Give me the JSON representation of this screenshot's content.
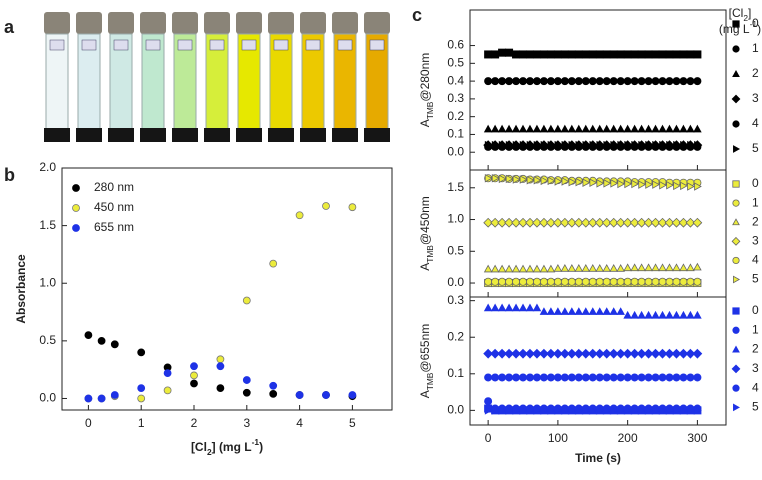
{
  "panel_labels": [
    "a",
    "b",
    "c"
  ],
  "legend_title": {
    "line1": [
      "[Cl",
      "2",
      "]"
    ],
    "line2": [
      "(mg L",
      "-1",
      ")"
    ]
  },
  "chart_data": [
    {
      "type": "scatter",
      "y_label": [
        "Absorbance"
      ],
      "x_label": [
        "[Cl",
        "2",
        "] (mg L",
        "-1",
        ")"
      ],
      "x": [
        0,
        0.25,
        0.5,
        1,
        1.5,
        2,
        2.5,
        3,
        3.5,
        4,
        4.5,
        5
      ],
      "xlim": [
        -0.5,
        5.75
      ],
      "xticks": [
        0,
        1,
        2,
        3,
        4,
        5
      ],
      "ylim": [
        -0.1,
        2.0
      ],
      "yticks": [
        {
          "value": 0,
          "label": "0.0"
        },
        {
          "value": 0.5,
          "label": "0.5"
        },
        {
          "value": 1,
          "label": "1.0"
        },
        {
          "value": 1.5,
          "label": "1.5"
        },
        {
          "value": 2,
          "label": "2.0"
        }
      ],
      "series": [
        {
          "name": "280 nm",
          "color": "#000000",
          "marker": "circle",
          "values": [
            0.55,
            0.5,
            0.47,
            0.4,
            0.27,
            0.13,
            0.09,
            0.05,
            0.04,
            0.03,
            0.03,
            0.02
          ]
        },
        {
          "name": "450 nm",
          "color": "#ecec3c",
          "marker": "circle",
          "values": [
            0,
            0,
            0.02,
            0.0,
            0.07,
            0.2,
            0.34,
            0.85,
            1.17,
            1.59,
            1.67,
            1.66
          ]
        },
        {
          "name": "655 nm",
          "color": "#1e32e6",
          "marker": "circle",
          "values": [
            0.0,
            0.0,
            0.03,
            0.09,
            0.22,
            0.28,
            0.28,
            0.16,
            0.11,
            0.03,
            0.03,
            0.03
          ]
        }
      ]
    },
    {
      "type": "scatter",
      "y_label": [
        "A",
        "TMB",
        "@280nm"
      ],
      "x": [
        0,
        10,
        20,
        30,
        40,
        50,
        60,
        70,
        80,
        90,
        100,
        110,
        120,
        130,
        140,
        150,
        160,
        170,
        180,
        190,
        200,
        210,
        220,
        230,
        240,
        250,
        260,
        270,
        280,
        290,
        300
      ],
      "xlim": [
        -26,
        341
      ],
      "xticks": [
        0,
        100,
        200,
        300
      ],
      "ylim": [
        -0.1,
        0.8
      ],
      "yticks": [
        {
          "value": 0,
          "label": "0.0"
        },
        {
          "value": 0.1,
          "label": "0.1"
        },
        {
          "value": 0.2,
          "label": "0.2"
        },
        {
          "value": 0.3,
          "label": "0.3"
        },
        {
          "value": 0.4,
          "label": "0.4"
        },
        {
          "value": 0.5,
          "label": "0.5"
        },
        {
          "value": 0.6,
          "label": "0.6"
        }
      ],
      "series": [
        {
          "name": "0",
          "color": "#000000",
          "marker": "square",
          "values": [
            0.55,
            0.55,
            0.56,
            0.56,
            0.55,
            0.55,
            0.55,
            0.55,
            0.55,
            0.55,
            0.55,
            0.55,
            0.55,
            0.55,
            0.55,
            0.55,
            0.55,
            0.55,
            0.55,
            0.55,
            0.55,
            0.55,
            0.55,
            0.55,
            0.55,
            0.55,
            0.55,
            0.55,
            0.55,
            0.55,
            0.55
          ]
        },
        {
          "name": "1",
          "color": "#000000",
          "marker": "circle",
          "values": [
            0.4,
            0.4,
            0.4,
            0.4,
            0.4,
            0.4,
            0.4,
            0.4,
            0.4,
            0.4,
            0.4,
            0.4,
            0.4,
            0.4,
            0.4,
            0.4,
            0.4,
            0.4,
            0.4,
            0.4,
            0.4,
            0.4,
            0.4,
            0.4,
            0.4,
            0.4,
            0.4,
            0.4,
            0.4,
            0.4,
            0.4
          ]
        },
        {
          "name": "2",
          "color": "#000000",
          "marker": "triangle",
          "values": [
            0.13,
            0.13,
            0.13,
            0.13,
            0.13,
            0.13,
            0.13,
            0.13,
            0.13,
            0.13,
            0.13,
            0.13,
            0.13,
            0.13,
            0.13,
            0.13,
            0.13,
            0.13,
            0.13,
            0.13,
            0.13,
            0.13,
            0.13,
            0.13,
            0.13,
            0.13,
            0.13,
            0.13,
            0.13,
            0.13,
            0.13
          ]
        },
        {
          "name": "3",
          "color": "#000000",
          "marker": "diamond",
          "values": [
            0.04,
            0.04,
            0.04,
            0.04,
            0.04,
            0.04,
            0.04,
            0.04,
            0.04,
            0.04,
            0.04,
            0.04,
            0.04,
            0.04,
            0.04,
            0.04,
            0.04,
            0.04,
            0.04,
            0.04,
            0.04,
            0.04,
            0.04,
            0.04,
            0.04,
            0.04,
            0.04,
            0.04,
            0.04,
            0.04,
            0.04
          ]
        },
        {
          "name": "4",
          "color": "#000000",
          "marker": "circle",
          "values": [
            0.03,
            0.03,
            0.03,
            0.03,
            0.03,
            0.03,
            0.03,
            0.03,
            0.03,
            0.03,
            0.03,
            0.03,
            0.03,
            0.03,
            0.03,
            0.03,
            0.03,
            0.03,
            0.03,
            0.03,
            0.03,
            0.03,
            0.03,
            0.03,
            0.03,
            0.03,
            0.03,
            0.03,
            0.03,
            0.03,
            0.03
          ]
        },
        {
          "name": "5",
          "color": "#000000",
          "marker": "triangle-right",
          "values": [
            0.04,
            0.04,
            0.04,
            0.04,
            0.04,
            0.04,
            0.04,
            0.04,
            0.04,
            0.04,
            0.04,
            0.04,
            0.04,
            0.04,
            0.04,
            0.04,
            0.04,
            0.04,
            0.04,
            0.04,
            0.04,
            0.04,
            0.04,
            0.04,
            0.04,
            0.04,
            0.04,
            0.04,
            0.04,
            0.04,
            0.04
          ]
        }
      ]
    },
    {
      "type": "scatter",
      "y_label": [
        "A",
        "TMB",
        "@450nm"
      ],
      "x": [
        0,
        10,
        20,
        30,
        40,
        50,
        60,
        70,
        80,
        90,
        100,
        110,
        120,
        130,
        140,
        150,
        160,
        170,
        180,
        190,
        200,
        210,
        220,
        230,
        240,
        250,
        260,
        270,
        280,
        290,
        300
      ],
      "xlim": [
        -26,
        341
      ],
      "xticks": [
        0,
        100,
        200,
        300
      ],
      "ylim": [
        -0.22,
        1.78
      ],
      "yticks": [
        {
          "value": 0,
          "label": "0.0"
        },
        {
          "value": 0.5,
          "label": "0.5"
        },
        {
          "value": 1,
          "label": "1.0"
        },
        {
          "value": 1.5,
          "label": "1.5"
        }
      ],
      "series": [
        {
          "name": "0",
          "color": "#ecec3c",
          "marker": "square",
          "values": [
            0,
            0,
            0,
            0,
            0,
            0,
            0,
            0,
            0,
            0,
            0,
            0,
            0,
            0,
            0,
            0,
            0,
            0,
            0,
            0,
            0,
            0,
            0,
            0,
            0,
            0,
            0,
            0,
            0,
            0,
            0
          ]
        },
        {
          "name": "1",
          "color": "#ecec3c",
          "marker": "circle",
          "values": [
            0.02,
            0.02,
            0.02,
            0.02,
            0.02,
            0.02,
            0.02,
            0.02,
            0.02,
            0.02,
            0.02,
            0.02,
            0.02,
            0.02,
            0.02,
            0.02,
            0.02,
            0.02,
            0.02,
            0.02,
            0.02,
            0.02,
            0.02,
            0.02,
            0.02,
            0.02,
            0.02,
            0.02,
            0.02,
            0.02,
            0.02
          ]
        },
        {
          "name": "2",
          "color": "#ecec3c",
          "marker": "triangle",
          "values": [
            0.22,
            0.22,
            0.22,
            0.22,
            0.22,
            0.22,
            0.22,
            0.22,
            0.22,
            0.22,
            0.23,
            0.23,
            0.23,
            0.23,
            0.23,
            0.23,
            0.23,
            0.23,
            0.23,
            0.23,
            0.24,
            0.24,
            0.24,
            0.24,
            0.24,
            0.24,
            0.24,
            0.24,
            0.24,
            0.24,
            0.25
          ]
        },
        {
          "name": "3",
          "color": "#ecec3c",
          "marker": "diamond",
          "values": [
            0.95,
            0.95,
            0.95,
            0.95,
            0.95,
            0.95,
            0.95,
            0.95,
            0.95,
            0.95,
            0.95,
            0.95,
            0.95,
            0.95,
            0.95,
            0.95,
            0.95,
            0.95,
            0.95,
            0.95,
            0.95,
            0.95,
            0.95,
            0.95,
            0.95,
            0.95,
            0.95,
            0.95,
            0.95,
            0.95,
            0.95
          ]
        },
        {
          "name": "4",
          "color": "#ecec3c",
          "marker": "circle",
          "values": [
            1.65,
            1.65,
            1.65,
            1.64,
            1.64,
            1.64,
            1.63,
            1.63,
            1.63,
            1.62,
            1.62,
            1.62,
            1.61,
            1.61,
            1.61,
            1.61,
            1.6,
            1.6,
            1.6,
            1.6,
            1.6,
            1.59,
            1.59,
            1.59,
            1.59,
            1.59,
            1.58,
            1.58,
            1.58,
            1.58,
            1.58
          ]
        },
        {
          "name": "5",
          "color": "#ecec3c",
          "marker": "triangle-right",
          "values": [
            1.65,
            1.65,
            1.64,
            1.64,
            1.63,
            1.63,
            1.62,
            1.62,
            1.61,
            1.61,
            1.6,
            1.6,
            1.59,
            1.59,
            1.58,
            1.58,
            1.57,
            1.57,
            1.57,
            1.56,
            1.56,
            1.56,
            1.55,
            1.55,
            1.55,
            1.54,
            1.54,
            1.53,
            1.53,
            1.52,
            1.52
          ]
        }
      ]
    },
    {
      "type": "scatter",
      "y_label": [
        "A",
        "TMB",
        "@655nm"
      ],
      "x_label": [
        "Time (s)"
      ],
      "x": [
        0,
        10,
        20,
        30,
        40,
        50,
        60,
        70,
        80,
        90,
        100,
        110,
        120,
        130,
        140,
        150,
        160,
        170,
        180,
        190,
        200,
        210,
        220,
        230,
        240,
        250,
        260,
        270,
        280,
        290,
        300
      ],
      "xlim": [
        -26,
        341
      ],
      "xticks": [
        0,
        100,
        200,
        300
      ],
      "ylim": [
        -0.04,
        0.31
      ],
      "yticks": [
        {
          "value": 0,
          "label": "0.0"
        },
        0.1,
        0.2,
        0.3
      ],
      "series": [
        {
          "name": "0",
          "color": "#1e32e6",
          "marker": "square",
          "values": [
            0.005,
            0,
            0,
            0,
            0,
            0,
            0,
            0,
            0,
            0,
            0,
            0,
            0,
            0,
            0,
            0,
            0,
            0,
            0,
            0,
            0,
            0,
            0,
            0,
            0,
            0,
            0,
            0,
            0,
            0,
            0
          ]
        },
        {
          "name": "1",
          "color": "#1e32e6",
          "marker": "circle",
          "values": [
            0.025,
            0.005,
            0.005,
            0.005,
            0.005,
            0.005,
            0.005,
            0.005,
            0.005,
            0.005,
            0.005,
            0.005,
            0.005,
            0.005,
            0.005,
            0.005,
            0.005,
            0.005,
            0.005,
            0.005,
            0.005,
            0.005,
            0.005,
            0.005,
            0.005,
            0.005,
            0.005,
            0.005,
            0.005,
            0.005,
            0.005
          ]
        },
        {
          "name": "2",
          "color": "#1e32e6",
          "marker": "triangle",
          "values": [
            0.28,
            0.28,
            0.28,
            0.28,
            0.28,
            0.28,
            0.28,
            0.28,
            0.27,
            0.27,
            0.27,
            0.27,
            0.27,
            0.27,
            0.27,
            0.27,
            0.27,
            0.27,
            0.27,
            0.27,
            0.26,
            0.26,
            0.26,
            0.26,
            0.26,
            0.26,
            0.26,
            0.26,
            0.26,
            0.26,
            0.26
          ]
        },
        {
          "name": "3",
          "color": "#1e32e6",
          "marker": "diamond",
          "values": [
            0.155,
            0.155,
            0.155,
            0.155,
            0.155,
            0.155,
            0.155,
            0.155,
            0.155,
            0.155,
            0.155,
            0.155,
            0.155,
            0.155,
            0.155,
            0.155,
            0.155,
            0.155,
            0.155,
            0.155,
            0.155,
            0.155,
            0.155,
            0.155,
            0.155,
            0.155,
            0.155,
            0.155,
            0.155,
            0.155,
            0.155
          ]
        },
        {
          "name": "4",
          "color": "#1e32e6",
          "marker": "circle",
          "values": [
            0.09,
            0.09,
            0.09,
            0.09,
            0.09,
            0.09,
            0.09,
            0.09,
            0.09,
            0.09,
            0.09,
            0.09,
            0.09,
            0.09,
            0.09,
            0.09,
            0.09,
            0.09,
            0.09,
            0.09,
            0.09,
            0.09,
            0.09,
            0.09,
            0.09,
            0.09,
            0.09,
            0.09,
            0.09,
            0.09,
            0.09
          ]
        },
        {
          "name": "5",
          "color": "#1e32e6",
          "marker": "triangle-right",
          "values": [
            0,
            0,
            0,
            0,
            0,
            0,
            0,
            0,
            0,
            0,
            0,
            0,
            0,
            0,
            0,
            0,
            0,
            0,
            0,
            0,
            0,
            0,
            0,
            0,
            0,
            0,
            0,
            0,
            0,
            0,
            0
          ]
        }
      ]
    }
  ]
}
